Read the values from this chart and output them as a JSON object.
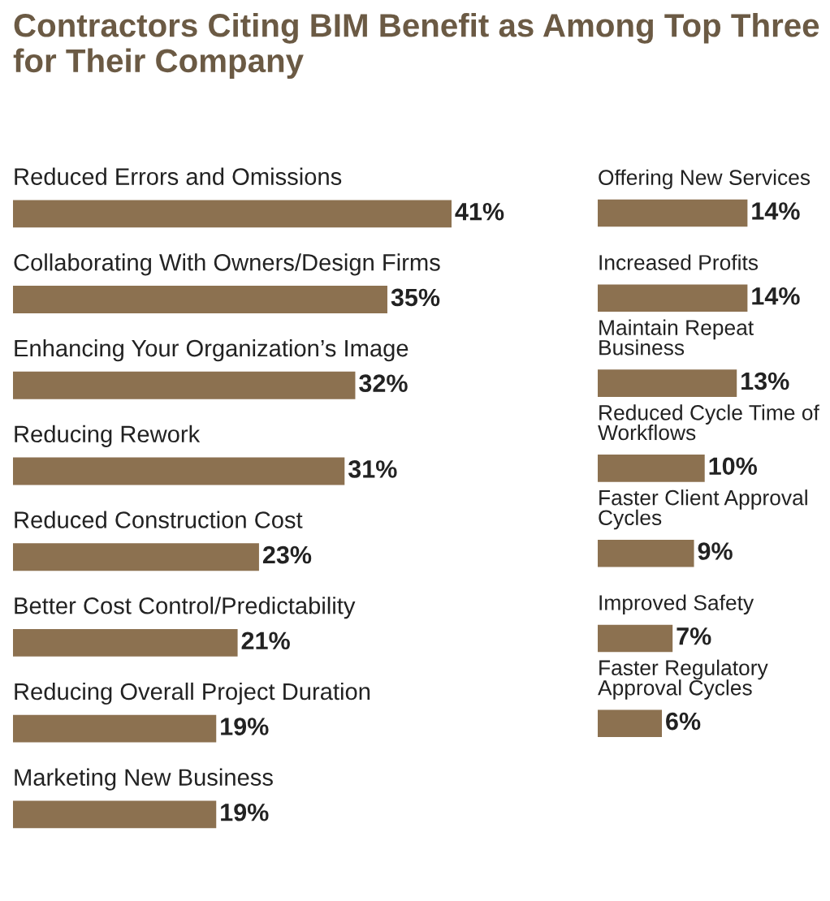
{
  "chart_data": [
    {
      "type": "bar",
      "orientation": "horizontal",
      "title": "Contractors Citing BIM Benefit as Among Top Three for Their Company",
      "categories": [
        "Reduced Errors and Omissions",
        "Collaborating With Owners/Design Firms",
        "Enhancing Your Organization’s Image",
        "Reducing Rework",
        "Reduced Construction Cost",
        "Better Cost Control/Predictability",
        "Reducing Overall Project Duration",
        "Marketing New Business"
      ],
      "values": [
        41,
        35,
        32,
        31,
        23,
        21,
        19,
        19
      ],
      "value_labels": [
        "41%",
        "35%",
        "32%",
        "31%",
        "23%",
        "21%",
        "19%",
        "19%"
      ],
      "color": "#8c7150"
    },
    {
      "type": "bar",
      "orientation": "horizontal",
      "categories": [
        "Offering New Services",
        "Increased Profits",
        "Maintain Repeat Business",
        "Reduced Cycle Time of Workflows",
        "Faster Client Approval Cycles",
        "Improved Safety",
        "Faster Regulatory Approval Cycles"
      ],
      "values": [
        14,
        14,
        13,
        10,
        9,
        7,
        6
      ],
      "value_labels": [
        "14%",
        "14%",
        "13%",
        "10%",
        "9%",
        "7%",
        "6%"
      ],
      "color": "#8c7150"
    }
  ]
}
